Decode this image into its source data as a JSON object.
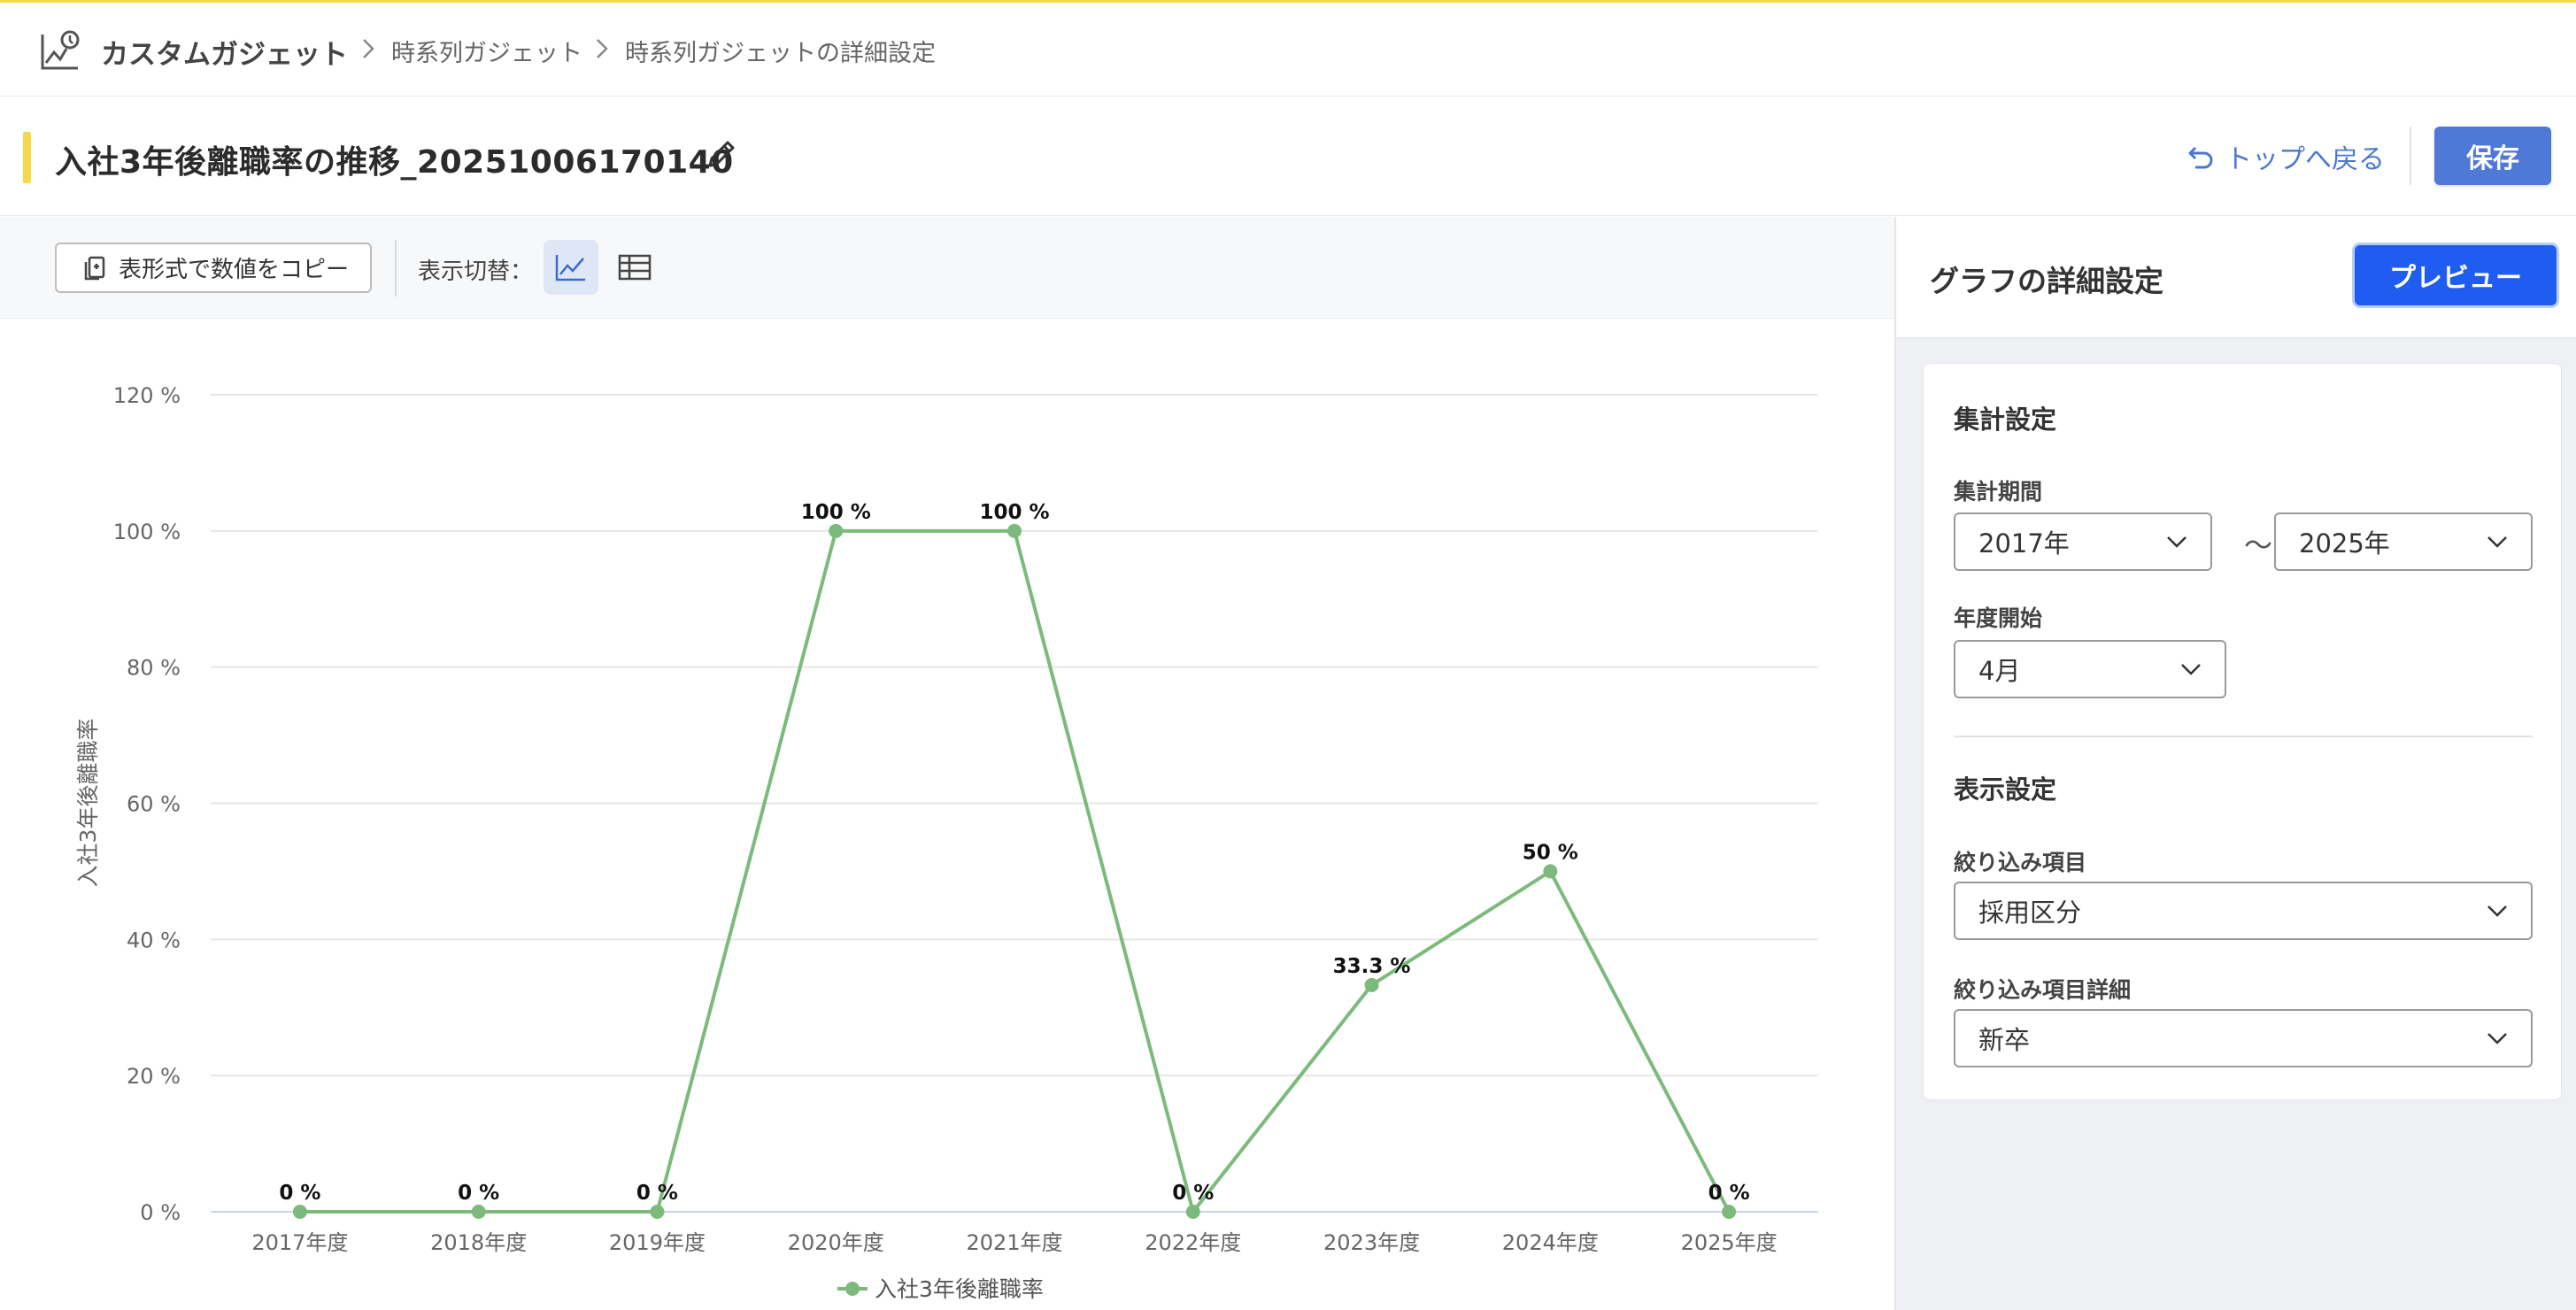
{
  "breadcrumb": {
    "root": "カスタムガジェット",
    "items": [
      "時系列ガジェット",
      "時系列ガジェットの詳細設定"
    ]
  },
  "header": {
    "title": "入社3年後離職率の推移_20251006170140",
    "back_label": "トップへ戻る",
    "save_label": "保存"
  },
  "toolbar": {
    "copy_label": "表形式で数値をコピー",
    "switch_label": "表示切替："
  },
  "panel": {
    "title": "グラフの詳細設定",
    "preview_label": "プレビュー",
    "aggregation": {
      "section_title": "集計設定",
      "period_label": "集計期間",
      "period_from": "2017年",
      "period_tilde": "〜",
      "period_to": "2025年",
      "fy_start_label": "年度開始",
      "fy_start_value": "4月"
    },
    "display": {
      "section_title": "表示設定",
      "filter_label": "絞り込み項目",
      "filter_value": "採用区分",
      "filter_detail_label": "絞り込み項目詳細",
      "filter_detail_value": "新卒"
    }
  },
  "colors": {
    "accent_yellow": "#f5d94a",
    "primary_blue": "#1f5cf0",
    "save_blue": "#4f79d6",
    "series_green": "#7cba7c"
  },
  "chart_data": {
    "type": "line",
    "ylabel": "入社3年後離職率",
    "xlabel": "",
    "categories": [
      "2017年度",
      "2018年度",
      "2019年度",
      "2020年度",
      "2021年度",
      "2022年度",
      "2023年度",
      "2024年度",
      "2025年度"
    ],
    "series": [
      {
        "name": "入社3年後離職率",
        "values": [
          0,
          0,
          0,
          100,
          100,
          0,
          33.3,
          50,
          0
        ],
        "labels": [
          "0 %",
          "0 %",
          "0 %",
          "100 %",
          "100 %",
          "0 %",
          "33.3 %",
          "50 %",
          "0 %"
        ]
      }
    ],
    "ylim": [
      0,
      120
    ],
    "yticks": [
      0,
      20,
      40,
      60,
      80,
      100,
      120
    ],
    "ytick_labels": [
      "0 %",
      "20 %",
      "40 %",
      "60 %",
      "80 %",
      "100 %",
      "120 %"
    ],
    "grid": true,
    "legend": "bottom-center"
  }
}
